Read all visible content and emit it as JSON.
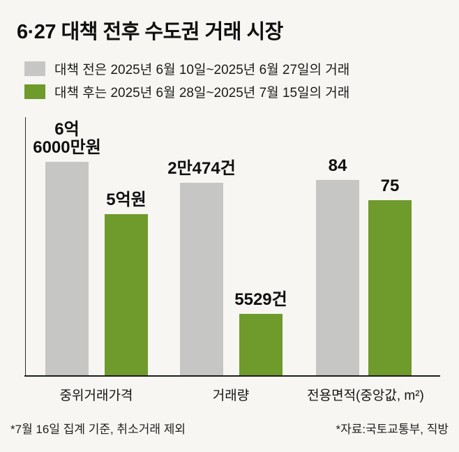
{
  "title": "6·27 대책 전후 수도권 거래 시장",
  "legend": {
    "items": [
      {
        "name": "before",
        "label": "대책 전은 2025년 6월 10일~2025년 6월 27일의 거래",
        "color": "#c6c6c4"
      },
      {
        "name": "after",
        "label": "대책 후는 2025년 6월 28일~2025년 7월 15일의 거래",
        "color": "#6f9a2c"
      }
    ]
  },
  "chart_data": {
    "type": "bar",
    "title": "6·27 대책 전후 수도권 거래 시장",
    "categories": [
      "중위거래가격",
      "거래량",
      "전용면적(중앙값, m²)"
    ],
    "category_units": [
      "원",
      "건",
      "m²"
    ],
    "series": [
      {
        "name": "대책 전",
        "color": "#c6c6c4",
        "values": [
          660000000,
          20474,
          84
        ],
        "value_labels": [
          "6억\n6000만원",
          "2만474건",
          "84"
        ]
      },
      {
        "name": "대책 후",
        "color": "#6f9a2c",
        "values": [
          500000000,
          5529,
          75
        ],
        "value_labels": [
          "5억원",
          "5529건",
          "75"
        ]
      }
    ],
    "legend_position": "top-left",
    "grid": false,
    "value_labels_position": "above-bars"
  },
  "footnotes": {
    "left": "*7월 16일 집계 기준, 취소거래 제외",
    "right": "*자료:국토교통부, 직방"
  }
}
